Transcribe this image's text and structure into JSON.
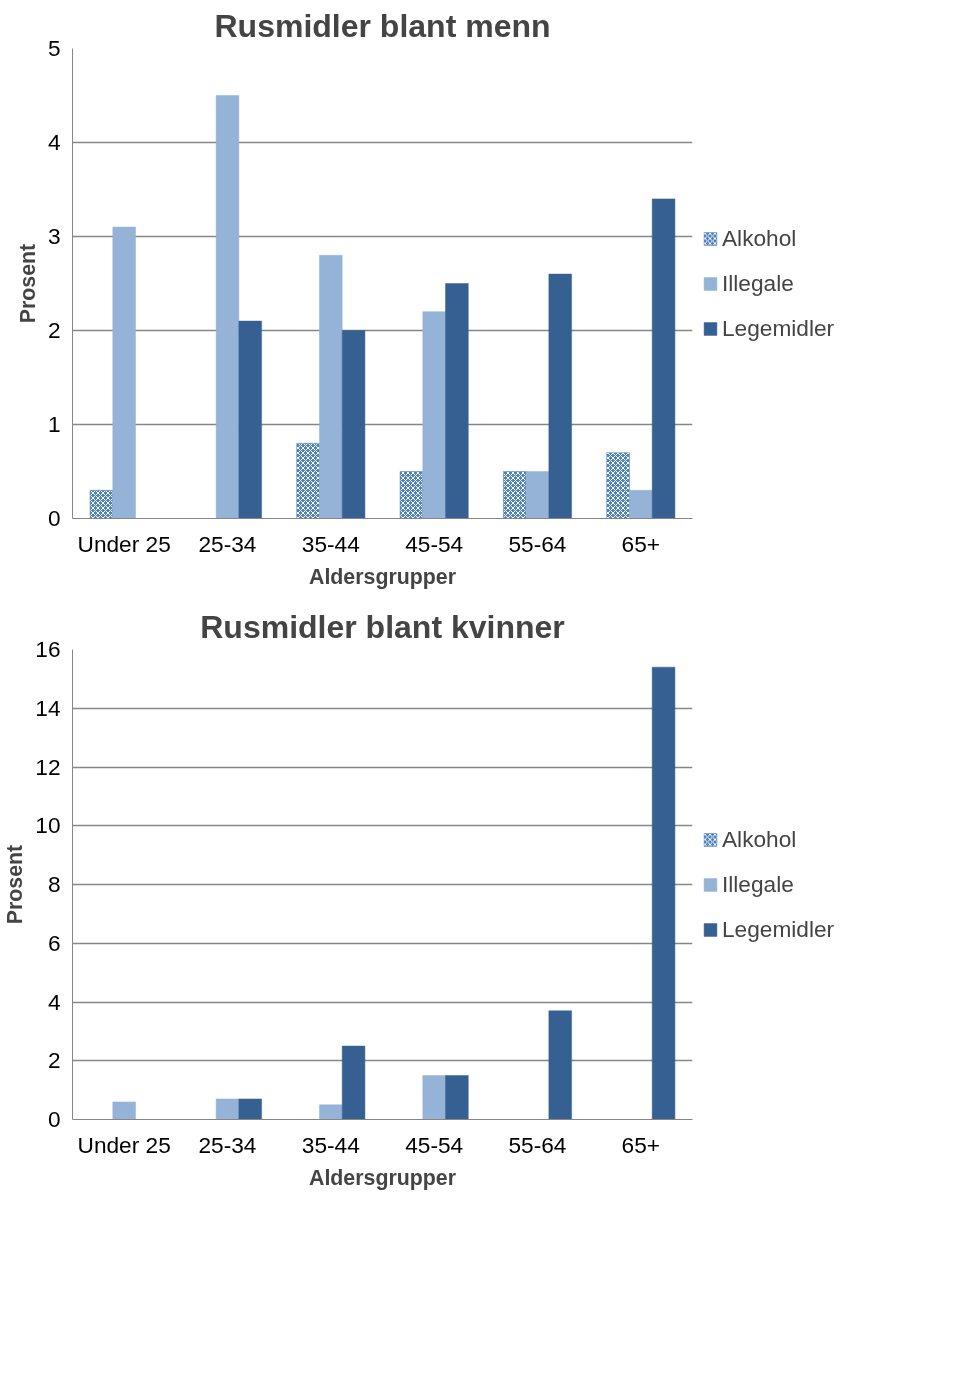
{
  "chart_data": [
    {
      "type": "bar",
      "title": "Rusmidler blant menn",
      "xlabel": "Aldersgrupper",
      "ylabel": "Prosent",
      "categories": [
        "Under 25",
        "25-34",
        "35-44",
        "45-54",
        "55-64",
        "65+"
      ],
      "series": [
        {
          "name": "Alkohol",
          "color": "#4f81bd",
          "values": [
            0.3,
            null,
            0.8,
            0.5,
            0.5,
            0.7
          ]
        },
        {
          "name": "Illegale",
          "color": "#95b3d7",
          "values": [
            3.1,
            4.5,
            2.8,
            2.2,
            0.5,
            0.3
          ]
        },
        {
          "name": "Legemidler",
          "color": "#366092",
          "values": [
            null,
            2.1,
            2.0,
            2.5,
            2.6,
            3.4
          ]
        }
      ],
      "ylim": [
        0,
        5
      ],
      "yticks": [
        0,
        1,
        2,
        3,
        4,
        5
      ],
      "grid": "y",
      "legend": "right"
    },
    {
      "type": "bar",
      "title": "Rusmidler blant kvinner",
      "xlabel": "Aldersgrupper",
      "ylabel": "Prosent",
      "categories": [
        "Under 25",
        "25-34",
        "35-44",
        "45-54",
        "55-64",
        "65+"
      ],
      "series": [
        {
          "name": "Alkohol",
          "color": "#4f81bd",
          "values": [
            null,
            null,
            null,
            null,
            null,
            null
          ]
        },
        {
          "name": "Illegale",
          "color": "#95b3d7",
          "values": [
            0.6,
            0.7,
            0.5,
            1.5,
            null,
            null
          ]
        },
        {
          "name": "Legemidler",
          "color": "#366092",
          "values": [
            null,
            0.7,
            2.5,
            1.5,
            3.7,
            15.4
          ]
        }
      ],
      "ylim": [
        0,
        16
      ],
      "yticks": [
        0,
        2,
        4,
        6,
        8,
        10,
        12,
        14,
        16
      ],
      "grid": "y",
      "legend": "right"
    }
  ]
}
